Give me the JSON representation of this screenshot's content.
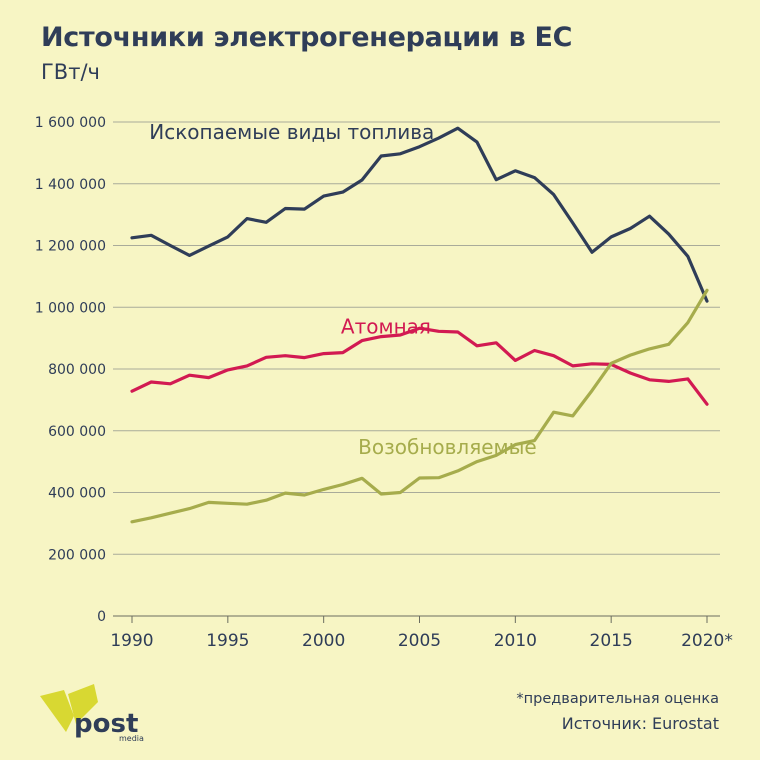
{
  "title": "Источники электрогенерации в ЕС",
  "unit": "ГВт/ч",
  "footnote": "*предварительная оценка",
  "source": "Источник: Eurostat",
  "logo": {
    "word": "post",
    "sub": "media"
  },
  "colors": {
    "background": "#f7f5c4",
    "text": "#2f3d58",
    "grid": "#a9ab9a",
    "fossil": "#2f3d58",
    "nuclear": "#d21a52",
    "renewable": "#a6ac4c",
    "logo_yellow": "#d8d832"
  },
  "chart_data": {
    "type": "line",
    "title": "Источники электрогенерации в ЕС",
    "ylabel": "ГВт/ч",
    "xlabel": "",
    "xlim": [
      1990,
      2020
    ],
    "ylim": [
      0,
      1600000
    ],
    "grid": true,
    "x_ticks": [
      {
        "value": 1990,
        "label": "1990"
      },
      {
        "value": 1995,
        "label": "1995"
      },
      {
        "value": 2000,
        "label": "2000"
      },
      {
        "value": 2005,
        "label": "2005"
      },
      {
        "value": 2010,
        "label": "2010"
      },
      {
        "value": 2015,
        "label": "2015"
      },
      {
        "value": 2020,
        "label": "2020*"
      }
    ],
    "y_ticks": [
      {
        "value": 0,
        "label": "0"
      },
      {
        "value": 200000,
        "label": "200 000"
      },
      {
        "value": 400000,
        "label": "400 000"
      },
      {
        "value": 600000,
        "label": "600 000"
      },
      {
        "value": 800000,
        "label": "800 000"
      },
      {
        "value": 1000000,
        "label": "1 000 000"
      },
      {
        "value": 1200000,
        "label": "1 200 000"
      },
      {
        "value": 1400000,
        "label": "1 400 000"
      },
      {
        "value": 1600000,
        "label": "1 600 000"
      }
    ],
    "x": [
      1990,
      1991,
      1992,
      1993,
      1994,
      1995,
      1996,
      1997,
      1998,
      1999,
      2000,
      2001,
      2002,
      2003,
      2004,
      2005,
      2006,
      2007,
      2008,
      2009,
      2010,
      2011,
      2012,
      2013,
      2014,
      2015,
      2016,
      2017,
      2018,
      2019,
      2020
    ],
    "series": [
      {
        "name": "Ископаемые виды топлива",
        "color": "#2f3d58",
        "label_anchor": [
          1990.9,
          1545000
        ],
        "values": [
          1225000,
          1233000,
          1200000,
          1168000,
          1198000,
          1228000,
          1287000,
          1275000,
          1320000,
          1318000,
          1360000,
          1373000,
          1412000,
          1490000,
          1497000,
          1520000,
          1548000,
          1580000,
          1535000,
          1413000,
          1442000,
          1420000,
          1365000,
          1273000,
          1178000,
          1228000,
          1255000,
          1295000,
          1237000,
          1165000,
          1020000
        ]
      },
      {
        "name": "Атомная",
        "color": "#d21a52",
        "label_anchor": [
          2000.9,
          915000
        ],
        "values": [
          728000,
          758000,
          752000,
          780000,
          772000,
          797000,
          810000,
          838000,
          843000,
          837000,
          850000,
          853000,
          892000,
          905000,
          910000,
          932000,
          922000,
          920000,
          875000,
          885000,
          828000,
          860000,
          843000,
          810000,
          817000,
          815000,
          787000,
          765000,
          760000,
          768000,
          686000
        ]
      },
      {
        "name": "Возобновляемые",
        "color": "#a6ac4c",
        "label_anchor": [
          2001.8,
          525000
        ],
        "values": [
          305000,
          318000,
          333000,
          348000,
          368000,
          365000,
          362000,
          375000,
          398000,
          392000,
          410000,
          426000,
          446000,
          395000,
          400000,
          447000,
          448000,
          470000,
          500000,
          520000,
          555000,
          568000,
          660000,
          648000,
          730000,
          818000,
          845000,
          865000,
          880000,
          950000,
          1055000
        ]
      }
    ]
  }
}
